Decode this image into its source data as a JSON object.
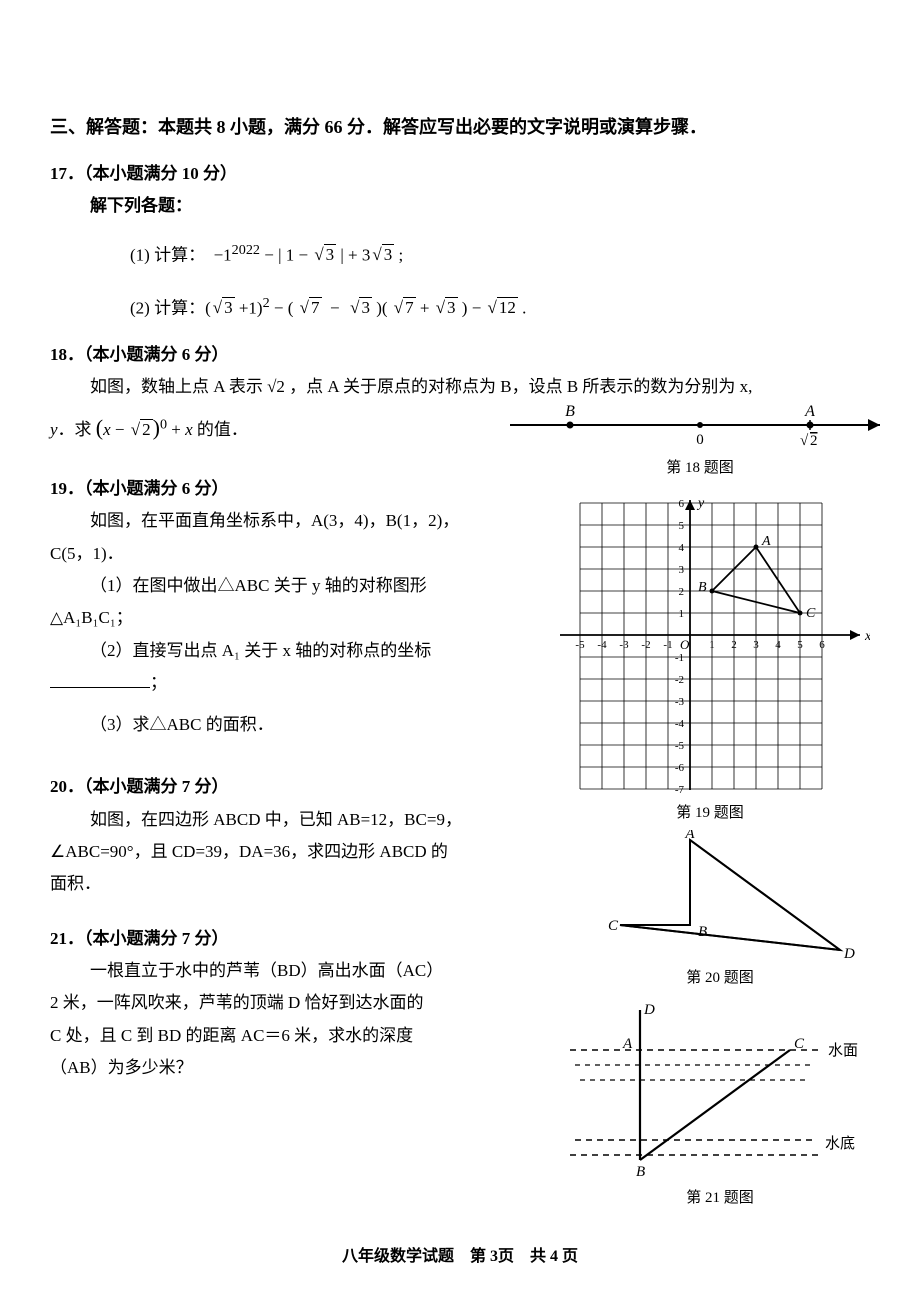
{
  "section_header": "三、解答题：本题共 8 小题，满分 66 分．解答应写出必要的文字说明或演算步骤．",
  "q17": {
    "header": "17．（本小题满分 10 分）",
    "sub_header": "解下列各题：",
    "part1": "(1) 计算：  −1²⁰²² − | 1 − √3 | + 3√3 ;",
    "part2": "(2) 计算： (√3 + 1)² − ( √7 − √3 )( √7 + √3 ) − √12 ."
  },
  "q18": {
    "header": "18．（本小题满分 6 分）",
    "text": "如图，数轴上点 A 表示 √2 ，点 A 关于原点的对称点为 B，设点 B 所表示的数为分别为 x,",
    "text2_prefix": "y．求",
    "text2_suffix": "的值．",
    "figure": {
      "caption": "第 18 题图",
      "labels": {
        "B": "B",
        "A": "A",
        "O": "0",
        "sqrt2": "√2"
      }
    }
  },
  "q19": {
    "header": "19．（本小题满分 6 分）",
    "text1": "如图，在平面直角坐标系中，A(3，4)，B(1，2)，",
    "text1b": "C(5，1)．",
    "part1": "（1）在图中做出△ABC 关于 y 轴的对称图形",
    "part1b": "△A₁B₁C₁；",
    "part2": "（2）直接写出点 A₁ 关于 x 轴的对称点的坐标",
    "blank_suffix": "；",
    "part3": "（3）求△ABC 的面积．",
    "figure": {
      "caption": "第 19 题图",
      "points": {
        "A": "A",
        "B": "B",
        "C": "C"
      },
      "axis": {
        "x": "x",
        "y": "y",
        "O": "O"
      },
      "xticks": [
        "-5",
        "-4",
        "-3",
        "-2",
        "-1",
        "1",
        "2",
        "3",
        "4",
        "5",
        "6"
      ],
      "yticks": [
        "1",
        "2",
        "3",
        "4",
        "5",
        "6"
      ],
      "yticks_neg": [
        "-1",
        "-2",
        "-3",
        "-4",
        "-5",
        "-6",
        "-7"
      ],
      "triangle": {
        "A": [
          3,
          4
        ],
        "B": [
          1,
          2
        ],
        "C": [
          5,
          1
        ]
      },
      "colors": {
        "grid": "#000000",
        "axis": "#000000",
        "triangle_fill": "none"
      }
    }
  },
  "q20": {
    "header": "20．（本小题满分 7 分）",
    "text1": "如图，在四边形 ABCD 中，已知 AB=12，BC=9，",
    "text2": "∠ABC=90°，且 CD=39，DA=36，求四边形 ABCD 的",
    "text3": "面积．",
    "figure": {
      "caption": "第 20 题图",
      "labels": {
        "A": "A",
        "B": "B",
        "C": "C",
        "D": "D"
      }
    }
  },
  "q21": {
    "header": "21．（本小题满分 7 分）",
    "text1": "一根直立于水中的芦苇（BD）高出水面（AC）",
    "text2": "2 米，一阵风吹来，芦苇的顶端 D 恰好到达水面的",
    "text3": "C 处，且 C 到 BD 的距离 AC＝6 米，求水的深度",
    "text4": "（AB）为多少米？",
    "figure": {
      "caption": "第 21 题图",
      "labels": {
        "A": "A",
        "B": "B",
        "C": "C",
        "D": "D",
        "surface": "水面",
        "bottom": "水底"
      }
    }
  },
  "footer": "八年级数学试题　第 3页　共 4 页"
}
